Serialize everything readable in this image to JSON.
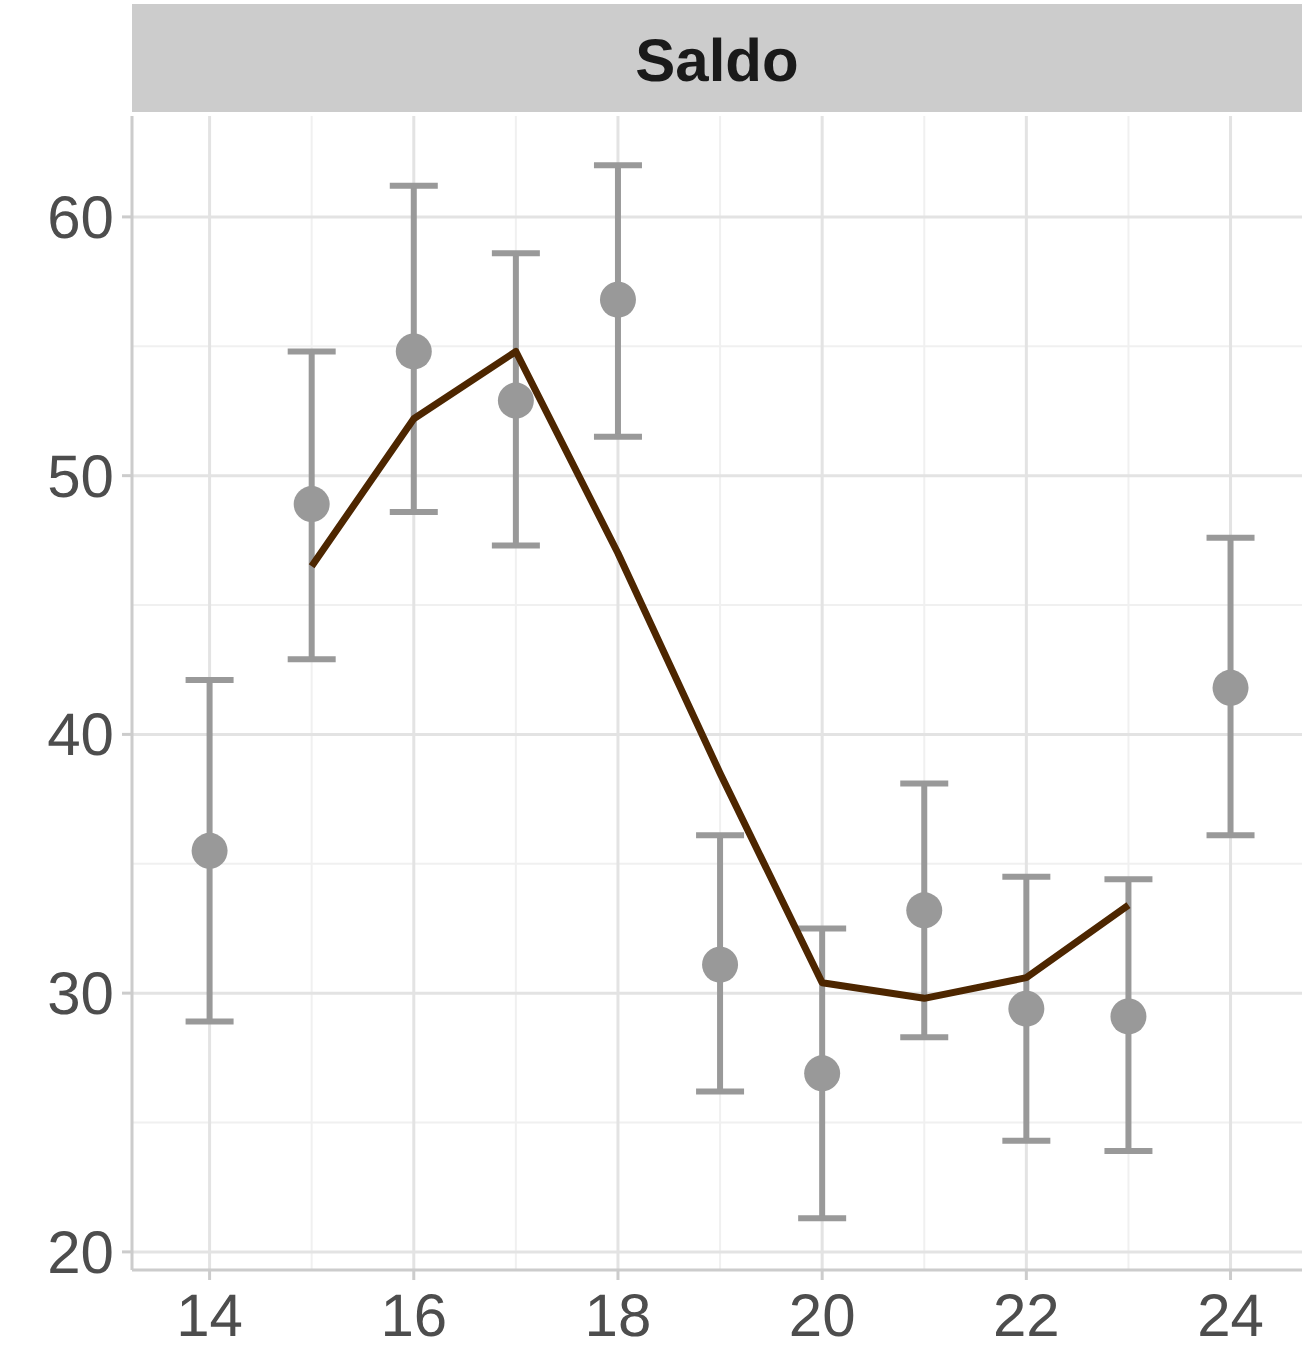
{
  "chart_data": {
    "type": "scatter",
    "title": "Saldo",
    "xlim": [
      13.24,
      24.7
    ],
    "xticks": [
      14,
      16,
      18,
      20,
      22,
      24
    ],
    "ylim": [
      19.3,
      63.9
    ],
    "yticks": [
      20,
      30,
      40,
      50,
      60
    ],
    "grid": true,
    "line_style": "solid",
    "series": [
      {
        "marker": "circle",
        "color": "#999999",
        "x": [
          14,
          15,
          16,
          17,
          18,
          19,
          20,
          21,
          22,
          23,
          24
        ],
        "values": [
          35.5,
          48.9,
          54.8,
          52.9,
          56.8,
          31.1,
          26.9,
          33.2,
          29.4,
          29.1,
          41.8
        ],
        "errors": [
          [
            28.9,
            42.1
          ],
          [
            42.9,
            54.8
          ],
          [
            48.6,
            61.2
          ],
          [
            47.3,
            58.6
          ],
          [
            51.5,
            62.0
          ],
          [
            26.2,
            36.1
          ],
          [
            21.3,
            32.5
          ],
          [
            28.3,
            38.1
          ],
          [
            24.3,
            34.5
          ],
          [
            23.9,
            34.4
          ],
          [
            36.1,
            47.6
          ]
        ]
      },
      {
        "type": "line",
        "color": "#4d2600",
        "x": [
          15,
          16,
          17,
          18,
          19,
          20,
          21,
          22,
          23
        ],
        "values": [
          46.5,
          52.2,
          54.8,
          47.0,
          38.5,
          30.4,
          29.8,
          30.6,
          33.4
        ]
      }
    ]
  }
}
